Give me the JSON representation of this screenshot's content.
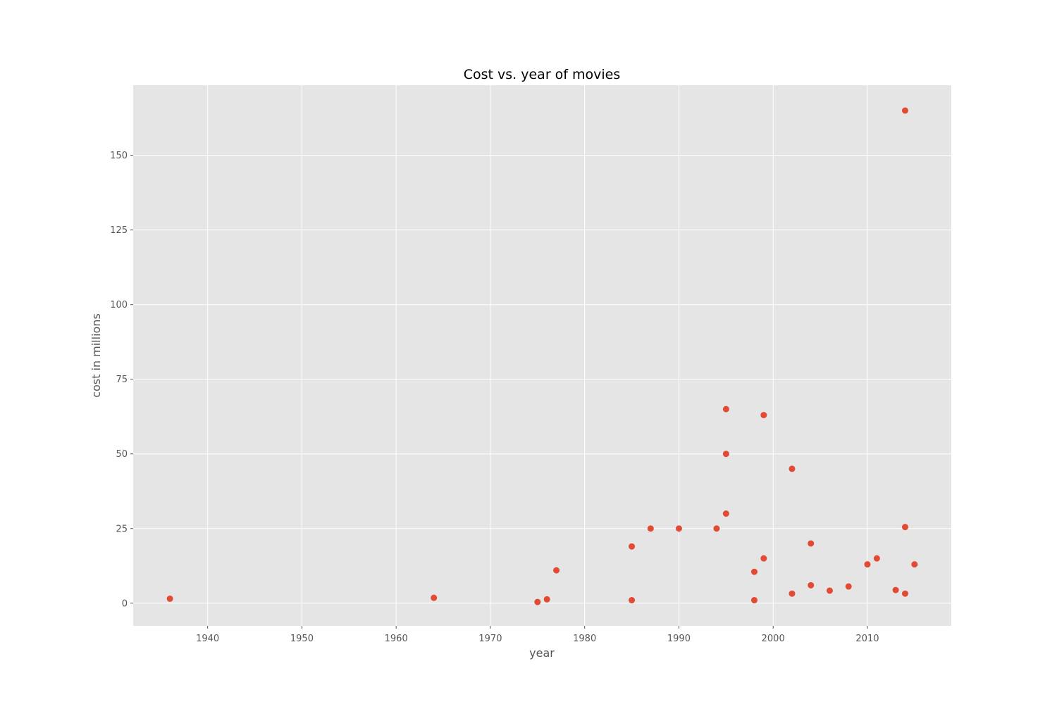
{
  "chart_data": {
    "type": "scatter",
    "title": "Cost vs. year of movies",
    "xlabel": "year",
    "ylabel": "cost in millions",
    "xlim": [
      1932.1,
      2018.9
    ],
    "ylim": [
      -7.6,
      173.5
    ],
    "xticks": [
      1940,
      1950,
      1960,
      1970,
      1980,
      1990,
      2000,
      2010
    ],
    "yticks": [
      0,
      25,
      50,
      75,
      100,
      125,
      150
    ],
    "grid": true,
    "background": "#e5e5e5",
    "marker_color": "#e24a33",
    "points": [
      {
        "x": 1936,
        "y": 1.5
      },
      {
        "x": 1964,
        "y": 1.8
      },
      {
        "x": 1975,
        "y": 0.4
      },
      {
        "x": 1976,
        "y": 1.3
      },
      {
        "x": 1977,
        "y": 11
      },
      {
        "x": 1985,
        "y": 19
      },
      {
        "x": 1985,
        "y": 1
      },
      {
        "x": 1987,
        "y": 25
      },
      {
        "x": 1990,
        "y": 25
      },
      {
        "x": 1994,
        "y": 25
      },
      {
        "x": 1995,
        "y": 65
      },
      {
        "x": 1995,
        "y": 50
      },
      {
        "x": 1995,
        "y": 30
      },
      {
        "x": 1998,
        "y": 10.5
      },
      {
        "x": 1998,
        "y": 1
      },
      {
        "x": 1999,
        "y": 63
      },
      {
        "x": 1999,
        "y": 15
      },
      {
        "x": 2002,
        "y": 45
      },
      {
        "x": 2002,
        "y": 3.2
      },
      {
        "x": 2004,
        "y": 20
      },
      {
        "x": 2004,
        "y": 6
      },
      {
        "x": 2006,
        "y": 4.2
      },
      {
        "x": 2008,
        "y": 5.6
      },
      {
        "x": 2010,
        "y": 13
      },
      {
        "x": 2011,
        "y": 15
      },
      {
        "x": 2013,
        "y": 4.4
      },
      {
        "x": 2014,
        "y": 165
      },
      {
        "x": 2014,
        "y": 25.5
      },
      {
        "x": 2014,
        "y": 3.2
      },
      {
        "x": 2015,
        "y": 13
      }
    ]
  }
}
